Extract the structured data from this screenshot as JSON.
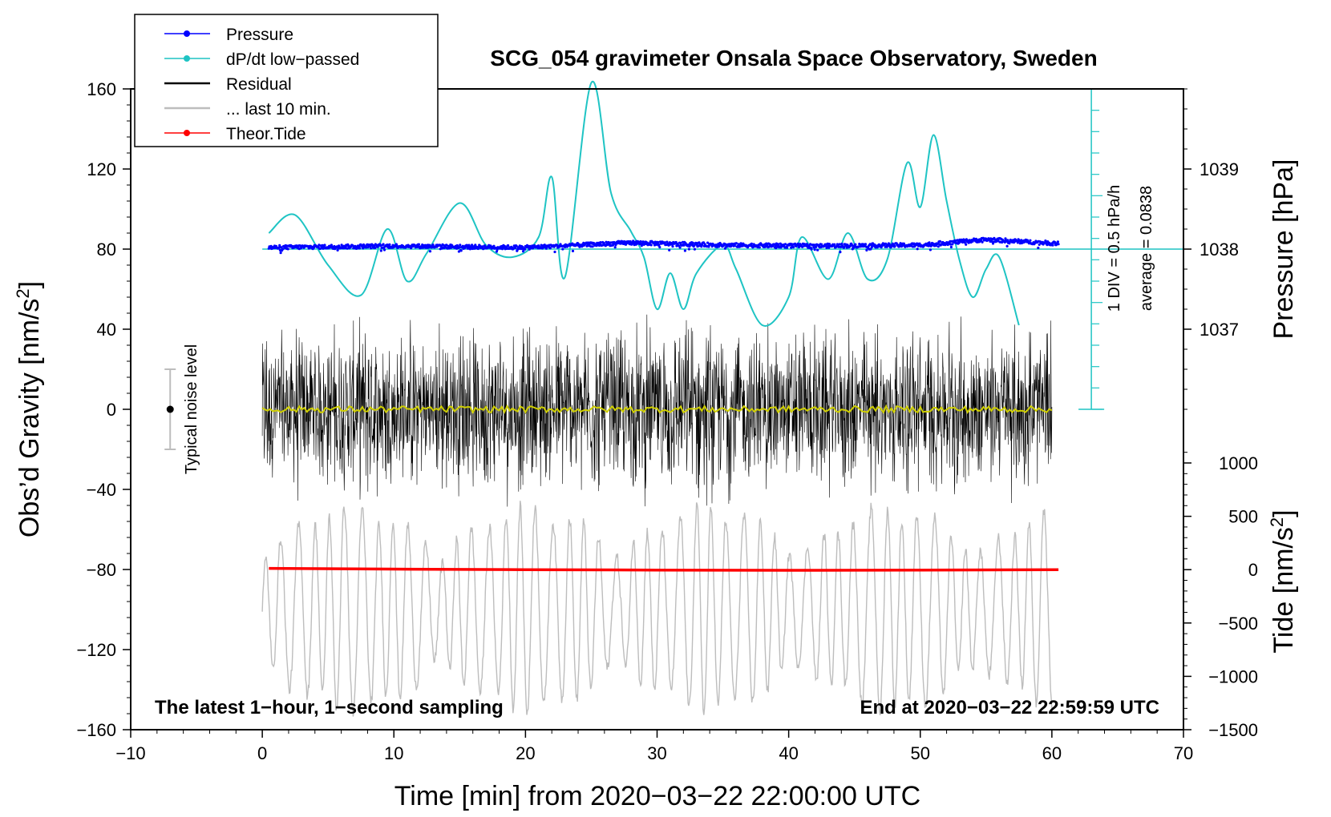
{
  "chart_data": {
    "type": "line",
    "title": "SCG_054 gravimeter Onsala Space Observatory, Sweden",
    "xlabel": "Time [min] from 2020−03−22 22:00:00 UTC",
    "ylabel": "Obs’d Gravity [nm/s",
    "ylabel_sup": "2",
    "ylabel_end": "]",
    "xlim": [
      -10,
      70
    ],
    "ylim": [
      -160,
      160
    ],
    "x_ticks": [
      "−10",
      "0",
      "10",
      "20",
      "30",
      "40",
      "50",
      "60",
      "70"
    ],
    "x_tick_values": [
      -10,
      0,
      10,
      20,
      30,
      40,
      50,
      60,
      70
    ],
    "y_ticks": [
      "160",
      "120",
      "80",
      "40",
      "0",
      "−40",
      "−80",
      "−120",
      "−160"
    ],
    "y_tick_values": [
      160,
      120,
      80,
      40,
      0,
      -40,
      -80,
      -120,
      -160
    ],
    "pressure_axis": {
      "label": "Pressure [hPa]",
      "ticks": [
        "1039",
        "1038",
        "1037"
      ],
      "tick_values": [
        1039,
        1038,
        1037
      ],
      "gravity_equiv": [
        120,
        80,
        40
      ]
    },
    "tide_axis": {
      "label": "Tide [nm/s",
      "label_sup": "2",
      "label_end": "]",
      "ticks": [
        "1000",
        "500",
        "0",
        "−500",
        "−1000",
        "−1500"
      ],
      "tick_values": [
        1000,
        500,
        0,
        -500,
        -1000,
        -1500
      ]
    },
    "dpdt_scale": {
      "div_label": "1 DIV = 0.5 hPa/h",
      "average_label": "average = 0.0838",
      "baseline_gravity": 80
    },
    "legend": [
      {
        "name": "Pressure",
        "color": "#0000ff",
        "marker": true
      },
      {
        "name": "dP/dt low−passed",
        "color": "#1fc4c4",
        "marker": true
      },
      {
        "name": "Residual",
        "color": "#000000",
        "marker": false
      },
      {
        "name": "... last 10 min.",
        "color": "#bdbdbd",
        "marker": false
      },
      {
        "name": "Theor.Tide",
        "color": "#ff0000",
        "marker": true
      }
    ],
    "noise_label": "Typical noise level",
    "noise_level": {
      "x": -7,
      "center": 0,
      "half_range": 20
    },
    "footer_left": "The latest 1−hour, 1−second sampling",
    "footer_right": "End at 2020−03−22 22:59:59 UTC",
    "series": [
      {
        "name": "Pressure",
        "unit": "hPa",
        "x": [
          0.5,
          10,
          20,
          28,
          35,
          42,
          50,
          55,
          60.5
        ],
        "values": [
          1038.02,
          1038.04,
          1038.02,
          1038.08,
          1038.05,
          1038.04,
          1038.05,
          1038.12,
          1038.07
        ]
      },
      {
        "name": "dP/dt low−passed",
        "unit": "gravity-equivalent",
        "x": [
          0.5,
          2.5,
          5,
          7.5,
          9.5,
          11,
          12.5,
          15,
          17,
          19,
          21,
          22,
          23,
          25,
          26.5,
          28,
          29,
          30,
          31,
          32,
          33,
          35,
          36,
          38,
          40,
          41,
          43,
          44.5,
          46,
          47.5,
          49,
          50,
          51,
          52,
          53,
          54,
          55,
          56,
          57.5
        ],
        "values": [
          88,
          97,
          72,
          57,
          90,
          64,
          78,
          103,
          82,
          76,
          86,
          116,
          66,
          163,
          108,
          89,
          76,
          50,
          68,
          50,
          68,
          82,
          70,
          42,
          56,
          86,
          65,
          88,
          65,
          75,
          123,
          101,
          137,
          104,
          74,
          56,
          70,
          76,
          42
        ]
      },
      {
        "name": "Residual",
        "unit": "nm/s2",
        "x": [
          0,
          60
        ],
        "values": [
          0,
          0
        ],
        "envelope": [
          -50,
          50
        ]
      },
      {
        "name": "... last 10 min.",
        "unit": "nm/s2",
        "x": [
          0,
          60
        ],
        "values": [
          -100,
          -100
        ],
        "envelope": [
          -155,
          -55
        ]
      },
      {
        "name": "Theor.Tide",
        "unit": "nm/s2",
        "x": [
          0.5,
          10,
          20,
          30,
          40,
          50,
          60.5
        ],
        "values": [
          12,
          5,
          0,
          -4,
          -6,
          -4,
          0
        ]
      }
    ]
  }
}
